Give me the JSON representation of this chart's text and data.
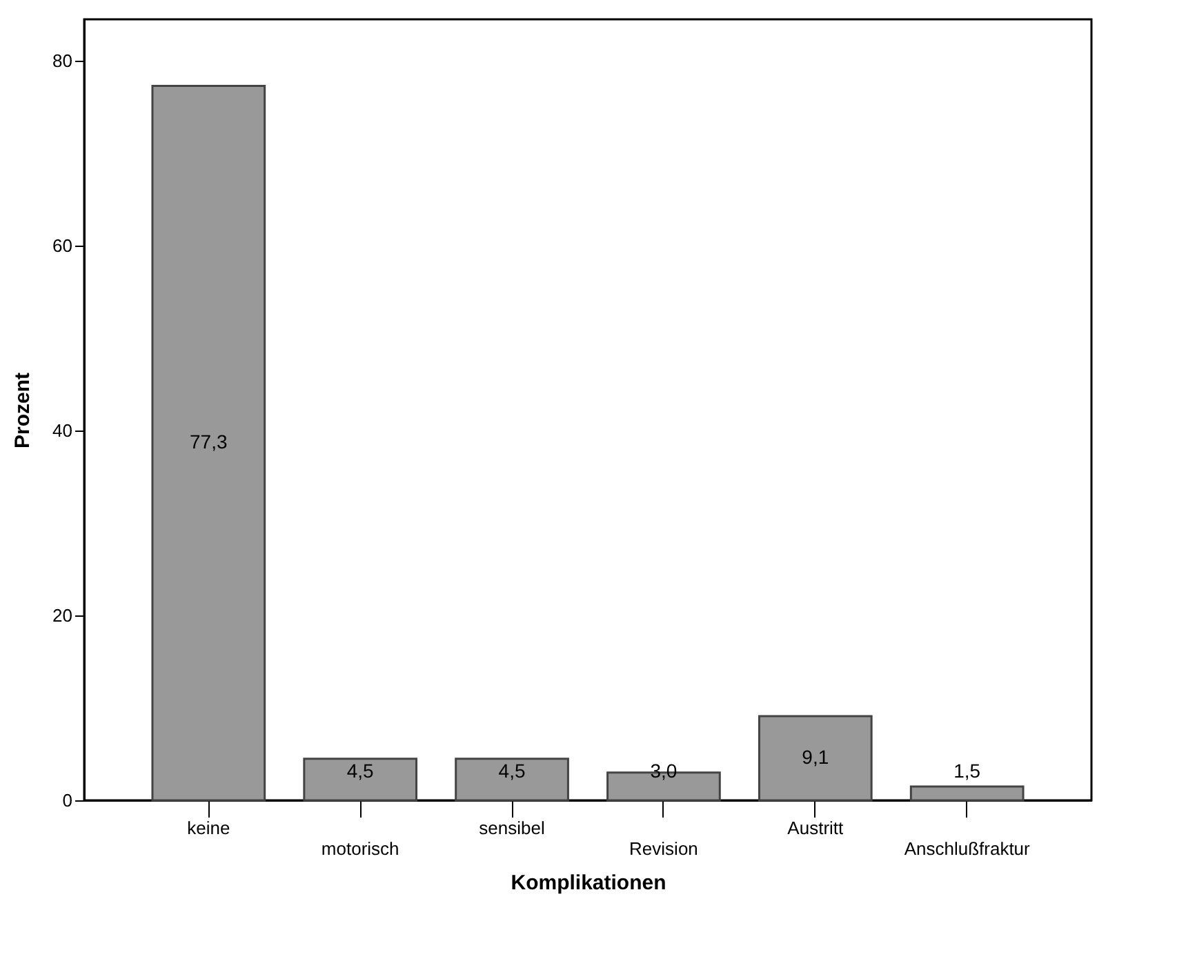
{
  "chart_data": {
    "type": "bar",
    "xlabel": "Komplikationen",
    "ylabel": "Prozent",
    "categories": [
      "keine",
      "motorisch",
      "sensibel",
      "Revision",
      "Austritt",
      "Anschlußfraktur"
    ],
    "values": [
      77.3,
      4.5,
      4.5,
      3.0,
      9.1,
      1.5
    ],
    "value_labels": [
      "77,3",
      "4,5",
      "4,5",
      "3,0",
      "9,1",
      "1,5"
    ],
    "color": "#999999",
    "ylim": [
      0,
      84.5
    ],
    "yticks": [
      0,
      20,
      40,
      60,
      80
    ],
    "grid": false
  }
}
